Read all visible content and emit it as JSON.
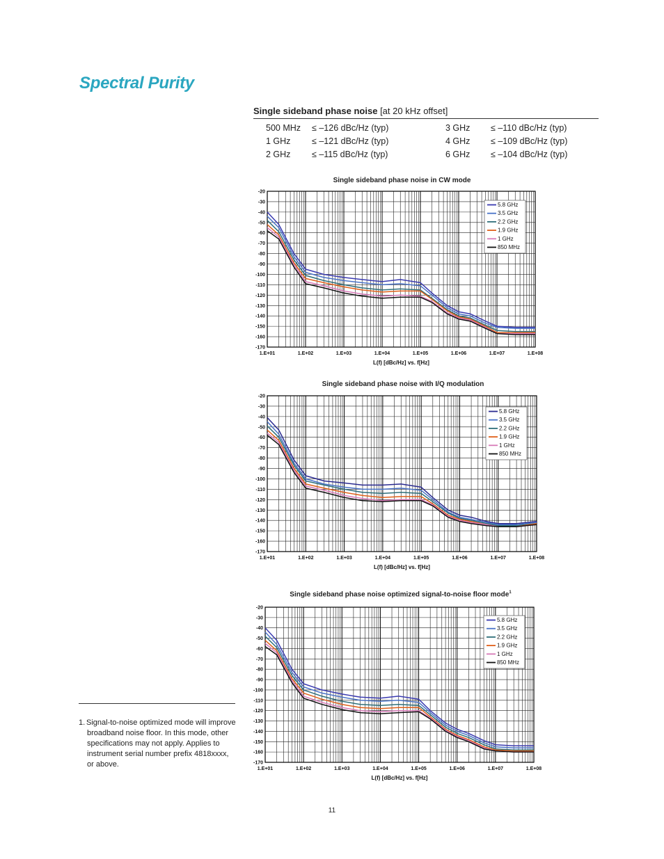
{
  "page": {
    "title": "Spectral Purity",
    "number": "11"
  },
  "spec": {
    "heading": "Single sideband phase noise",
    "heading_suffix": "[at 20 kHz offset]",
    "rows": [
      {
        "freq": "500 MHz",
        "value": "≤ –126 dBc/Hz (typ)"
      },
      {
        "freq": "1 GHz",
        "value": "≤ –121 dBc/Hz (typ)"
      },
      {
        "freq": "2 GHz",
        "value": "≤ –115 dBc/Hz (typ)"
      },
      {
        "freq": "3 GHz",
        "value": "≤ –110 dBc/Hz (typ)"
      },
      {
        "freq": "4 GHz",
        "value": "≤ –109 dBc/Hz (typ)"
      },
      {
        "freq": "6 GHz",
        "value": "≤ –104 dBc/Hz (typ)"
      }
    ]
  },
  "footnote": {
    "marker": "1.",
    "text": "Signal-to-noise optimized mode will improve broadband noise floor. In this mode, other specifications may not apply. Applies to instrument serial number prefix 4818xxxx, or above."
  },
  "chart_data": [
    {
      "type": "line",
      "title": "Single sideband phase noise in CW mode",
      "xlabel": "L(f) [dBc/Hz] vs. f[Hz]",
      "ylabel": "",
      "x_scale": "log",
      "xlim": [
        10,
        100000000
      ],
      "ylim": [
        -170,
        -20
      ],
      "x_ticks": [
        "1.E+01",
        "1.E+02",
        "1.E+03",
        "1.E+04",
        "1.E+05",
        "1.E+06",
        "1.E+07",
        "1.E+08"
      ],
      "y_ticks": [
        "-20",
        "-30",
        "-40",
        "-50",
        "-60",
        "-70",
        "-80",
        "-90",
        "-100",
        "-110",
        "-120",
        "-130",
        "-140",
        "-150",
        "-160",
        "-170"
      ],
      "grid": true,
      "legend": "top-right",
      "x": [
        10,
        20,
        50,
        100,
        300,
        1000,
        3000,
        10000,
        30000,
        100000,
        200000,
        500000,
        1000000,
        2000000,
        5000000,
        10000000,
        30000000,
        100000000
      ],
      "series": [
        {
          "name": "5.8 GHz",
          "color": "#3a3ab0",
          "values": [
            -40,
            -52,
            -80,
            -95,
            -100,
            -103,
            -105,
            -107,
            -105,
            -108,
            -118,
            -130,
            -136,
            -138,
            -145,
            -150,
            -151,
            -151
          ]
        },
        {
          "name": "3.5 GHz",
          "color": "#4a73c8",
          "values": [
            -44,
            -55,
            -83,
            -98,
            -103,
            -106,
            -108,
            -110,
            -109,
            -111,
            -120,
            -132,
            -138,
            -140,
            -147,
            -151,
            -152,
            -152
          ]
        },
        {
          "name": "2.2 GHz",
          "color": "#2f6f7a",
          "values": [
            -48,
            -59,
            -86,
            -101,
            -106,
            -110,
            -113,
            -115,
            -114,
            -115,
            -123,
            -134,
            -140,
            -142,
            -149,
            -154,
            -155,
            -155
          ]
        },
        {
          "name": "1.9 GHz",
          "color": "#e0601a",
          "values": [
            -52,
            -62,
            -89,
            -104,
            -108,
            -112,
            -115,
            -117,
            -116,
            -116,
            -124,
            -135,
            -141,
            -143,
            -150,
            -156,
            -156,
            -156
          ]
        },
        {
          "name": "1 GHz",
          "color": "#d77ab8",
          "values": [
            -55,
            -64,
            -91,
            -107,
            -111,
            -116,
            -119,
            -121,
            -120,
            -121,
            -126,
            -137,
            -142,
            -144,
            -151,
            -157,
            -157,
            -157
          ]
        },
        {
          "name": "850 MHz",
          "color": "#111111",
          "values": [
            -58,
            -66,
            -93,
            -109,
            -113,
            -118,
            -121,
            -123,
            -122,
            -122,
            -127,
            -138,
            -143,
            -145,
            -152,
            -157,
            -158,
            -158
          ]
        }
      ]
    },
    {
      "type": "line",
      "title": "Single sideband phase noise with I/Q modulation",
      "xlabel": "L(f) [dBc/Hz] vs. f[Hz]",
      "ylabel": "",
      "x_scale": "log",
      "xlim": [
        10,
        100000000
      ],
      "ylim": [
        -170,
        -20
      ],
      "x_ticks": [
        "1.E+01",
        "1.E+02",
        "1.E+03",
        "1.E+04",
        "1.E+05",
        "1.E+06",
        "1.E+07",
        "1.E+08"
      ],
      "y_ticks": [
        "-20",
        "-30",
        "-40",
        "-50",
        "-60",
        "-70",
        "-80",
        "-90",
        "-100",
        "-110",
        "-120",
        "-130",
        "-140",
        "-150",
        "-160",
        "-170"
      ],
      "grid": true,
      "legend": "top-right",
      "x": [
        10,
        20,
        50,
        100,
        300,
        1000,
        3000,
        10000,
        30000,
        100000,
        200000,
        500000,
        1000000,
        2000000,
        5000000,
        10000000,
        30000000,
        100000000
      ],
      "series": [
        {
          "name": "5.8 GHz",
          "color": "#2a2a90",
          "values": [
            -41,
            -53,
            -82,
            -97,
            -102,
            -104,
            -106,
            -106,
            -105,
            -108,
            -118,
            -130,
            -135,
            -137,
            -141,
            -143,
            -143,
            -141
          ]
        },
        {
          "name": "3.5 GHz",
          "color": "#4a73c8",
          "values": [
            -45,
            -57,
            -85,
            -100,
            -105,
            -108,
            -110,
            -110,
            -109,
            -111,
            -120,
            -132,
            -137,
            -139,
            -142,
            -144,
            -144,
            -142
          ]
        },
        {
          "name": "2.2 GHz",
          "color": "#2f6f7a",
          "values": [
            -49,
            -60,
            -87,
            -102,
            -106,
            -110,
            -113,
            -114,
            -113,
            -114,
            -122,
            -133,
            -138,
            -140,
            -143,
            -145,
            -145,
            -143
          ]
        },
        {
          "name": "1.9 GHz",
          "color": "#e0601a",
          "values": [
            -53,
            -63,
            -90,
            -105,
            -109,
            -113,
            -116,
            -118,
            -117,
            -117,
            -124,
            -135,
            -139,
            -141,
            -144,
            -146,
            -146,
            -143
          ]
        },
        {
          "name": "1 GHz",
          "color": "#d77ab8",
          "values": [
            -56,
            -65,
            -92,
            -107,
            -111,
            -116,
            -119,
            -121,
            -120,
            -120,
            -125,
            -136,
            -140,
            -142,
            -144,
            -146,
            -146,
            -144
          ]
        },
        {
          "name": "850 MHz",
          "color": "#111111",
          "values": [
            -58,
            -67,
            -94,
            -109,
            -113,
            -118,
            -121,
            -122,
            -121,
            -121,
            -126,
            -137,
            -141,
            -143,
            -145,
            -146,
            -146,
            -144
          ]
        }
      ]
    },
    {
      "type": "line",
      "title": "Single sideband phase noise optimized signal-to-noise floor mode",
      "title_superscript": "1",
      "xlabel": "L(f) [dBc/Hz] vs. f[Hz]",
      "ylabel": "",
      "x_scale": "log",
      "xlim": [
        10,
        100000000
      ],
      "ylim": [
        -170,
        -20
      ],
      "x_ticks": [
        "1.E+01",
        "1.E+02",
        "1.E+03",
        "1.E+04",
        "1.E+05",
        "1.E+06",
        "1.E+07",
        "1.E+08"
      ],
      "y_ticks": [
        "-20",
        "-30",
        "-40",
        "-50",
        "-60",
        "-70",
        "-80",
        "-90",
        "-100",
        "-110",
        "-120",
        "-130",
        "-140",
        "-150",
        "-160",
        "-170"
      ],
      "grid": true,
      "legend": "top-right",
      "x": [
        10,
        20,
        50,
        100,
        300,
        1000,
        3000,
        10000,
        30000,
        100000,
        200000,
        500000,
        1000000,
        2000000,
        5000000,
        10000000,
        30000000,
        100000000
      ],
      "series": [
        {
          "name": "5.8 GHz",
          "color": "#3a3ab0",
          "values": [
            -40,
            -52,
            -80,
            -94,
            -100,
            -104,
            -107,
            -108,
            -106,
            -109,
            -120,
            -132,
            -138,
            -142,
            -149,
            -153,
            -154,
            -154
          ]
        },
        {
          "name": "3.5 GHz",
          "color": "#4a73c8",
          "values": [
            -44,
            -56,
            -83,
            -97,
            -103,
            -107,
            -110,
            -111,
            -110,
            -112,
            -122,
            -134,
            -140,
            -144,
            -151,
            -155,
            -156,
            -156
          ]
        },
        {
          "name": "2.2 GHz",
          "color": "#2f6f7a",
          "values": [
            -48,
            -59,
            -86,
            -100,
            -106,
            -111,
            -114,
            -115,
            -114,
            -115,
            -124,
            -136,
            -142,
            -146,
            -153,
            -157,
            -158,
            -158
          ]
        },
        {
          "name": "1.9 GHz",
          "color": "#e0601a",
          "values": [
            -52,
            -62,
            -89,
            -103,
            -109,
            -114,
            -117,
            -118,
            -117,
            -117,
            -126,
            -138,
            -144,
            -148,
            -155,
            -158,
            -159,
            -159
          ]
        },
        {
          "name": "1 GHz",
          "color": "#d77ab8",
          "values": [
            -55,
            -64,
            -91,
            -106,
            -112,
            -117,
            -120,
            -121,
            -120,
            -120,
            -127,
            -139,
            -145,
            -149,
            -156,
            -159,
            -160,
            -160
          ]
        },
        {
          "name": "850 MHz",
          "color": "#111111",
          "values": [
            -58,
            -66,
            -93,
            -108,
            -114,
            -119,
            -122,
            -123,
            -122,
            -121,
            -128,
            -140,
            -146,
            -150,
            -157,
            -159,
            -160,
            -160
          ]
        }
      ]
    }
  ]
}
